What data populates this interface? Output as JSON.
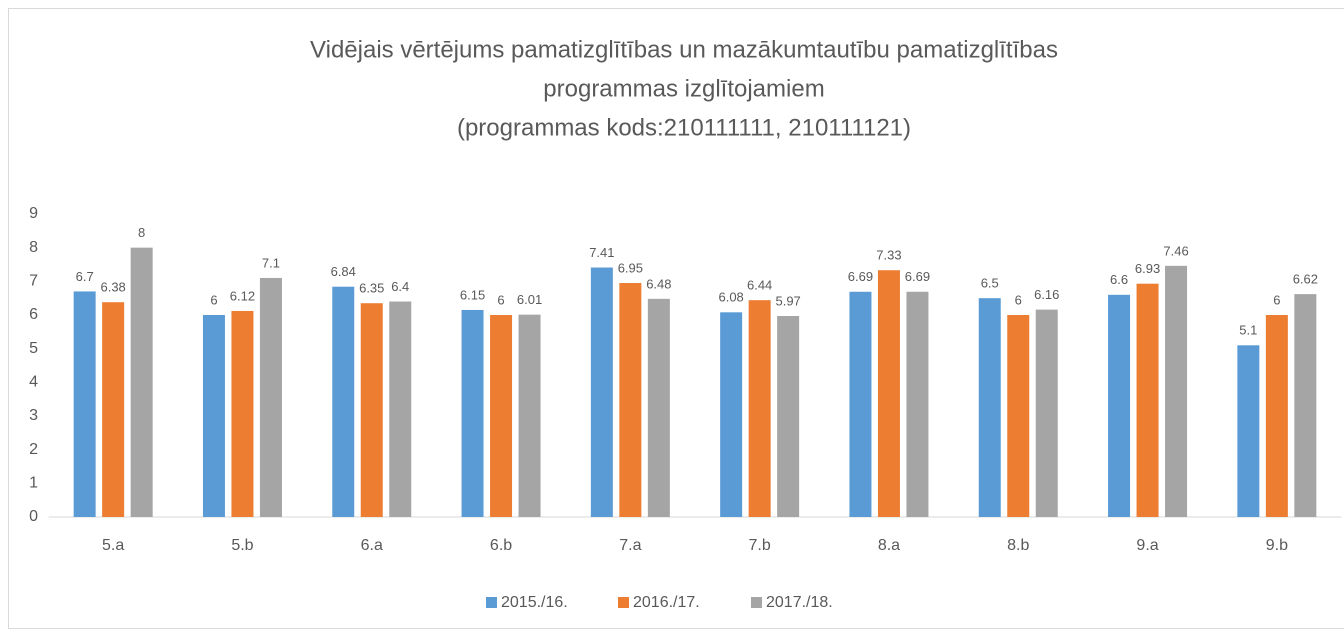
{
  "chart_data": {
    "type": "bar",
    "title": [
      "Vidējais vērtējums pamatizglītības un mazākumtautību pamatizglītības",
      "programmas izglītojamiem",
      "(programmas kods:210111111, 210111121)"
    ],
    "categories": [
      "5.a",
      "5.b",
      "6.a",
      "6.b",
      "7.a",
      "7.b",
      "8.a",
      "8.b",
      "9.a",
      "9.b"
    ],
    "series": [
      {
        "name": "2015./16.",
        "color": "#5b9bd5",
        "values": [
          6.7,
          6,
          6.84,
          6.15,
          7.41,
          6.08,
          6.69,
          6.5,
          6.6,
          5.1
        ]
      },
      {
        "name": "2016./17.",
        "color": "#ed7d31",
        "values": [
          6.38,
          6.12,
          6.35,
          6,
          6.95,
          6.44,
          7.33,
          6,
          6.93,
          6
        ]
      },
      {
        "name": "2017./18.",
        "color": "#a5a5a5",
        "values": [
          8,
          7.1,
          6.4,
          6.01,
          6.48,
          5.97,
          6.69,
          6.16,
          7.46,
          6.62
        ]
      }
    ],
    "ylim": [
      0,
      9
    ],
    "yticks": [
      0,
      1,
      2,
      3,
      4,
      5,
      6,
      7,
      8,
      9
    ],
    "grid": false,
    "legend": "bottom"
  }
}
